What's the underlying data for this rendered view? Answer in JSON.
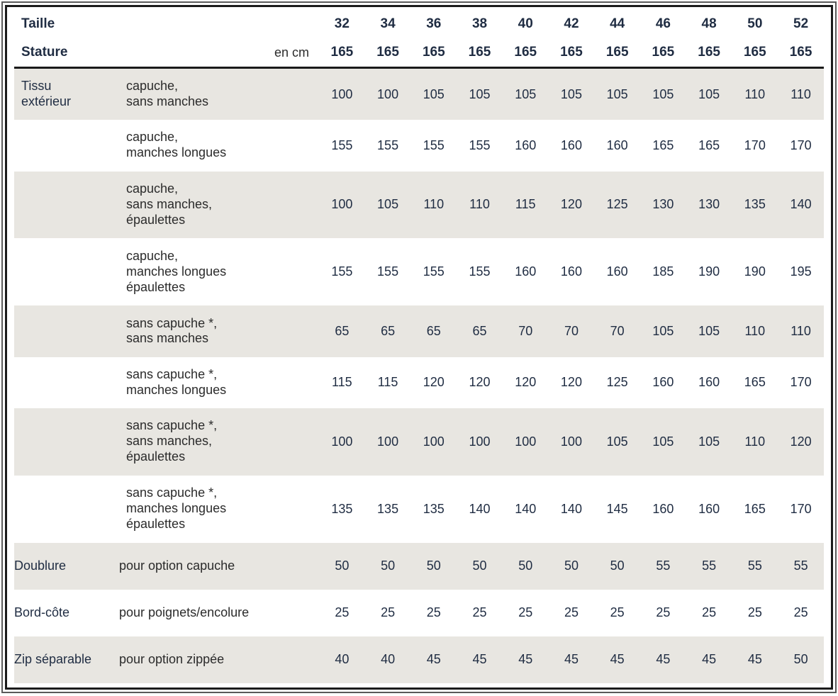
{
  "colors": {
    "heading_navy": "#1f2c42",
    "body_text": "#2b2b2b",
    "row_shade": "#e8e6e1",
    "header_rule": "#1a1a1a",
    "frame_outer": "#5a5a5a",
    "frame_inner": "#1b1b1b"
  },
  "table": {
    "size_row_label": "Taille",
    "stature_row_label": "Stature",
    "unit_label": "en cm",
    "sizes": [
      "32",
      "34",
      "36",
      "38",
      "40",
      "42",
      "44",
      "46",
      "48",
      "50",
      "52"
    ],
    "statures": [
      "165",
      "165",
      "165",
      "165",
      "165",
      "165",
      "165",
      "165",
      "165",
      "165",
      "165"
    ],
    "rows": [
      {
        "category": "Tissu\nextérieur",
        "description": "capuche,\nsans manches",
        "values": [
          "100",
          "100",
          "105",
          "105",
          "105",
          "105",
          "105",
          "105",
          "105",
          "110",
          "110"
        ]
      },
      {
        "category": "",
        "description": "capuche,\nmanches longues",
        "values": [
          "155",
          "155",
          "155",
          "155",
          "160",
          "160",
          "160",
          "165",
          "165",
          "170",
          "170"
        ]
      },
      {
        "category": "",
        "description": "capuche,\nsans manches,\népaulettes",
        "values": [
          "100",
          "105",
          "110",
          "110",
          "115",
          "120",
          "125",
          "130",
          "130",
          "135",
          "140"
        ]
      },
      {
        "category": "",
        "description": "capuche,\nmanches longues\népaulettes",
        "values": [
          "155",
          "155",
          "155",
          "155",
          "160",
          "160",
          "160",
          "185",
          "190",
          "190",
          "195"
        ]
      },
      {
        "category": "",
        "description": "sans capuche *,\nsans manches",
        "values": [
          "65",
          "65",
          "65",
          "65",
          "70",
          "70",
          "70",
          "105",
          "105",
          "110",
          "110"
        ]
      },
      {
        "category": "",
        "description": "sans capuche *,\nmanches longues",
        "values": [
          "115",
          "115",
          "120",
          "120",
          "120",
          "120",
          "125",
          "160",
          "160",
          "165",
          "170"
        ]
      },
      {
        "category": "",
        "description": "sans capuche *,\nsans manches,\népaulettes",
        "values": [
          "100",
          "100",
          "100",
          "100",
          "100",
          "100",
          "105",
          "105",
          "105",
          "110",
          "120"
        ]
      },
      {
        "category": "",
        "description": "sans capuche *,\nmanches longues\népaulettes",
        "values": [
          "135",
          "135",
          "135",
          "140",
          "140",
          "140",
          "145",
          "160",
          "160",
          "165",
          "170"
        ]
      },
      {
        "category": "Doublure",
        "description": "pour option capuche",
        "values": [
          "50",
          "50",
          "50",
          "50",
          "50",
          "50",
          "50",
          "55",
          "55",
          "55",
          "55"
        ]
      },
      {
        "category": "Bord-côte",
        "description": "pour poignets/encolure",
        "values": [
          "25",
          "25",
          "25",
          "25",
          "25",
          "25",
          "25",
          "25",
          "25",
          "25",
          "25"
        ]
      },
      {
        "category": "Zip séparable",
        "description": "pour option zippée",
        "values": [
          "40",
          "40",
          "45",
          "45",
          "45",
          "45",
          "45",
          "45",
          "45",
          "45",
          "50"
        ]
      }
    ]
  }
}
